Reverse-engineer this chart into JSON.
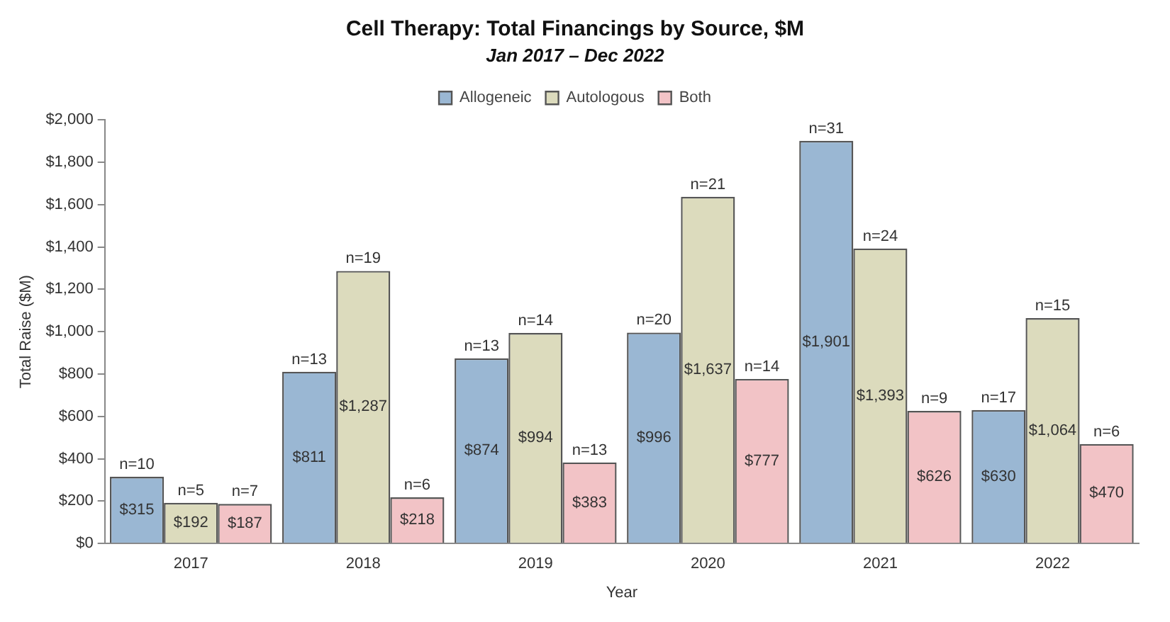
{
  "chart_data": {
    "type": "bar",
    "title": "Cell Therapy: Total Financings by Source, $M",
    "subtitle": "Jan 2017 – Dec 2022",
    "xlabel": "Year",
    "ylabel": "Total Raise ($M)",
    "categories": [
      "2017",
      "2018",
      "2019",
      "2020",
      "2021",
      "2022"
    ],
    "series": [
      {
        "name": "Allogeneic",
        "color": "#9ab7d3",
        "values": [
          315,
          811,
          874,
          996,
          1901,
          630
        ],
        "value_labels": [
          "$315",
          "$811",
          "$874",
          "$996",
          "$1,901",
          "$630"
        ]
      },
      {
        "name": "Autologous",
        "color": "#dcdbbd",
        "values": [
          192,
          1287,
          994,
          1637,
          1393,
          1064
        ],
        "value_labels": [
          "$192",
          "$1,287",
          "$994",
          "$1,637",
          "$1,393",
          "$1,064"
        ]
      },
      {
        "name": "Both",
        "color": "#f2c3c6",
        "values": [
          187,
          218,
          383,
          777,
          626,
          470
        ],
        "value_labels": [
          "$187",
          "$218",
          "$383",
          "$777",
          "$626",
          "$470"
        ]
      }
    ],
    "ylim": [
      0,
      2000
    ],
    "yticks": [
      {
        "value": 0,
        "label": "$0"
      },
      {
        "value": 200,
        "label": "$200"
      },
      {
        "value": 400,
        "label": "$400"
      },
      {
        "value": 600,
        "label": "$600"
      },
      {
        "value": 800,
        "label": "$800"
      },
      {
        "value": 1000,
        "label": "$1,000"
      },
      {
        "value": 1200,
        "label": "$1,200"
      },
      {
        "value": 1400,
        "label": "$1,400"
      },
      {
        "value": 1600,
        "label": "$1,600"
      },
      {
        "value": 1800,
        "label": "$1,800"
      },
      {
        "value": 2000,
        "label": "$2,000"
      }
    ],
    "grid": false,
    "legend": "top",
    "annotations": [
      "n=10",
      "n=5",
      "n=7",
      "n=13",
      "n=19",
      "n=6",
      "n=13",
      "n=14",
      "n=13",
      "n=20",
      "n=21",
      "n=14",
      "n=31",
      "n=24",
      "n=9",
      "n=17",
      "n=15",
      "n=6"
    ]
  }
}
